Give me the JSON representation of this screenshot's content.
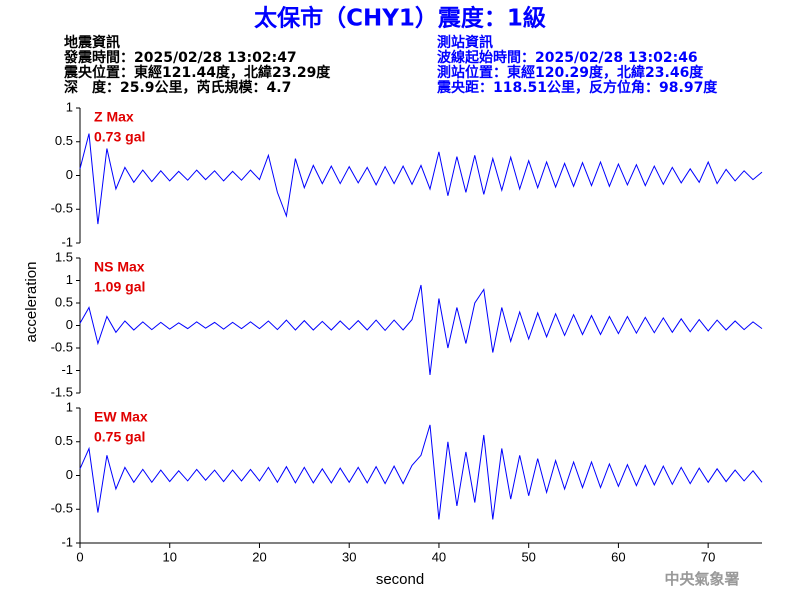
{
  "header": {
    "title": "太保市（CHY1）震度：1級",
    "left": [
      "地震資訊",
      "發震時間：2025/02/28 13:02:47",
      "震央位置：東經121.44度，北緯23.29度",
      "深　度：25.9公里，芮氏規模：4.7"
    ],
    "right": [
      "測站資訊",
      "波線起始時間：2025/02/28 13:02:46",
      "測站位置：東經120.29度，北緯23.46度",
      "震央距：118.51公里，反方位角：98.97度"
    ]
  },
  "x_label": "second",
  "y_label": "acceleration",
  "footer": "中央氣象署",
  "chart_data": [
    {
      "type": "line",
      "max_label": "Z Max",
      "max_value": "0.73 gal",
      "color": "#0000ff",
      "xlim": [
        0,
        76
      ],
      "ylim": [
        -1,
        1
      ],
      "yticks": [
        -1,
        -0.5,
        0,
        0.5,
        1
      ],
      "x": [
        0,
        1,
        2,
        3,
        4,
        5,
        6,
        7,
        8,
        9,
        10,
        11,
        12,
        13,
        14,
        15,
        16,
        17,
        18,
        19,
        20,
        21,
        22,
        23,
        24,
        25,
        26,
        27,
        28,
        29,
        30,
        31,
        32,
        33,
        34,
        35,
        36,
        37,
        38,
        39,
        40,
        41,
        42,
        43,
        44,
        45,
        46,
        47,
        48,
        49,
        50,
        51,
        52,
        53,
        54,
        55,
        56,
        57,
        58,
        59,
        60,
        61,
        62,
        63,
        64,
        65,
        66,
        67,
        68,
        69,
        70,
        71,
        72,
        73,
        74,
        75,
        76
      ],
      "values": [
        0.1,
        0.62,
        -0.72,
        0.4,
        -0.2,
        0.12,
        -0.1,
        0.08,
        -0.09,
        0.07,
        -0.08,
        0.06,
        -0.07,
        0.08,
        -0.06,
        0.07,
        -0.08,
        0.06,
        -0.07,
        0.08,
        -0.06,
        0.3,
        -0.25,
        -0.6,
        0.25,
        -0.18,
        0.15,
        -0.12,
        0.14,
        -0.12,
        0.13,
        -0.11,
        0.12,
        -0.14,
        0.13,
        -0.12,
        0.14,
        -0.13,
        0.15,
        -0.2,
        0.35,
        -0.3,
        0.28,
        -0.25,
        0.3,
        -0.28,
        0.25,
        -0.22,
        0.27,
        -0.2,
        0.22,
        -0.18,
        0.2,
        -0.17,
        0.18,
        -0.16,
        0.19,
        -0.15,
        0.2,
        -0.16,
        0.17,
        -0.14,
        0.16,
        -0.15,
        0.14,
        -0.13,
        0.12,
        -0.11,
        0.1,
        -0.1,
        0.2,
        -0.12,
        0.09,
        -0.08,
        0.07,
        -0.06,
        0.05
      ]
    },
    {
      "type": "line",
      "max_label": "NS Max",
      "max_value": "1.09 gal",
      "color": "#0000ff",
      "xlim": [
        0,
        76
      ],
      "ylim": [
        -1.5,
        1.5
      ],
      "yticks": [
        -1.5,
        -1,
        -0.5,
        0,
        0.5,
        1,
        1.5
      ],
      "x": [
        0,
        1,
        2,
        3,
        4,
        5,
        6,
        7,
        8,
        9,
        10,
        11,
        12,
        13,
        14,
        15,
        16,
        17,
        18,
        19,
        20,
        21,
        22,
        23,
        24,
        25,
        26,
        27,
        28,
        29,
        30,
        31,
        32,
        33,
        34,
        35,
        36,
        37,
        38,
        39,
        40,
        41,
        42,
        43,
        44,
        45,
        46,
        47,
        48,
        49,
        50,
        51,
        52,
        53,
        54,
        55,
        56,
        57,
        58,
        59,
        60,
        61,
        62,
        63,
        64,
        65,
        66,
        67,
        68,
        69,
        70,
        71,
        72,
        73,
        74,
        75,
        76
      ],
      "values": [
        0.05,
        0.4,
        -0.4,
        0.2,
        -0.15,
        0.1,
        -0.1,
        0.08,
        -0.09,
        0.07,
        -0.08,
        0.06,
        -0.07,
        0.08,
        -0.06,
        0.07,
        -0.08,
        0.07,
        -0.07,
        0.08,
        -0.07,
        0.1,
        -0.09,
        0.12,
        -0.1,
        0.11,
        -0.1,
        0.09,
        -0.1,
        0.1,
        -0.09,
        0.11,
        -0.1,
        0.12,
        -0.11,
        0.12,
        -0.1,
        0.13,
        0.9,
        -1.1,
        0.6,
        -0.5,
        0.4,
        -0.4,
        0.5,
        0.8,
        -0.6,
        0.4,
        -0.35,
        0.3,
        -0.3,
        0.28,
        -0.25,
        0.26,
        -0.22,
        0.24,
        -0.2,
        0.22,
        -0.2,
        0.2,
        -0.18,
        0.2,
        -0.17,
        0.18,
        -0.16,
        0.17,
        -0.15,
        0.15,
        -0.14,
        0.13,
        -0.12,
        0.12,
        -0.1,
        0.1,
        -0.09,
        0.08,
        -0.07
      ]
    },
    {
      "type": "line",
      "max_label": "EW Max",
      "max_value": "0.75 gal",
      "color": "#0000ff",
      "xlim": [
        0,
        76
      ],
      "ylim": [
        -1,
        1
      ],
      "yticks": [
        -1,
        -0.5,
        0,
        0.5,
        1
      ],
      "xticks": [
        0,
        10,
        20,
        30,
        40,
        50,
        60,
        70
      ],
      "x": [
        0,
        1,
        2,
        3,
        4,
        5,
        6,
        7,
        8,
        9,
        10,
        11,
        12,
        13,
        14,
        15,
        16,
        17,
        18,
        19,
        20,
        21,
        22,
        23,
        24,
        25,
        26,
        27,
        28,
        29,
        30,
        31,
        32,
        33,
        34,
        35,
        36,
        37,
        38,
        39,
        40,
        41,
        42,
        43,
        44,
        45,
        46,
        47,
        48,
        49,
        50,
        51,
        52,
        53,
        54,
        55,
        56,
        57,
        58,
        59,
        60,
        61,
        62,
        63,
        64,
        65,
        66,
        67,
        68,
        69,
        70,
        71,
        72,
        73,
        74,
        75,
        76
      ],
      "values": [
        0.1,
        0.4,
        -0.55,
        0.3,
        -0.2,
        0.12,
        -0.1,
        0.09,
        -0.1,
        0.08,
        -0.09,
        0.07,
        -0.08,
        0.09,
        -0.07,
        0.08,
        -0.09,
        0.08,
        -0.08,
        0.09,
        -0.08,
        0.12,
        -0.1,
        0.13,
        -0.11,
        0.12,
        -0.11,
        0.1,
        -0.11,
        0.11,
        -0.1,
        0.12,
        -0.11,
        0.13,
        -0.12,
        0.14,
        -0.12,
        0.15,
        0.3,
        0.75,
        -0.65,
        0.5,
        -0.45,
        0.35,
        -0.4,
        0.6,
        -0.65,
        0.4,
        -0.35,
        0.3,
        -0.3,
        0.25,
        -0.25,
        0.22,
        -0.2,
        0.2,
        -0.18,
        0.2,
        -0.18,
        0.17,
        -0.16,
        0.16,
        -0.15,
        0.15,
        -0.14,
        0.14,
        -0.13,
        0.12,
        -0.12,
        0.11,
        -0.1,
        0.1,
        -0.09,
        0.08,
        -0.08,
        0.07,
        -0.1
      ]
    }
  ]
}
